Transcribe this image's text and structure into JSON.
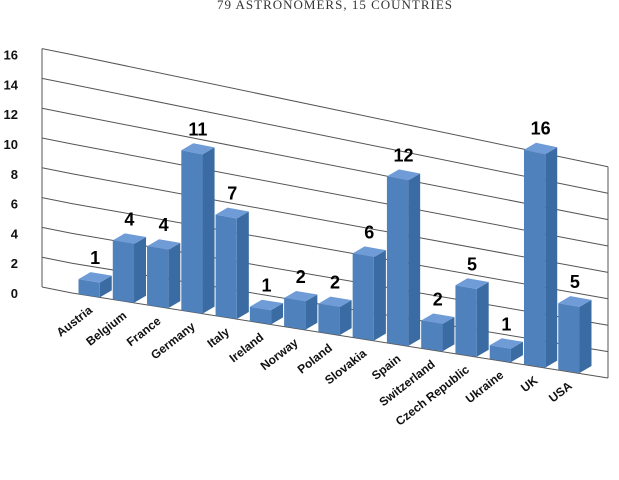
{
  "chart_data": {
    "type": "bar",
    "subtitle": "79 ASTRONOMERS, 15 COUNTRIES",
    "categories": [
      "Austria",
      "Belgium",
      "France",
      "Germany",
      "Italy",
      "Ireland",
      "Norway",
      "Poland",
      "Slovakia",
      "Spain",
      "Switzerland",
      "Czech Republic",
      "Ukraine",
      "UK",
      "USA"
    ],
    "values": [
      1,
      4,
      4,
      11,
      7,
      1,
      2,
      2,
      6,
      12,
      2,
      5,
      1,
      16,
      5
    ],
    "yticks": [
      "0",
      "2",
      "4",
      "6",
      "8",
      "10",
      "12",
      "14",
      "16"
    ],
    "ylim": [
      0,
      16
    ],
    "grid": true,
    "bar_color": "#4f81bd",
    "bar_side_color": "#3a6ba3",
    "bar_top_color": "#6f9bd6"
  }
}
